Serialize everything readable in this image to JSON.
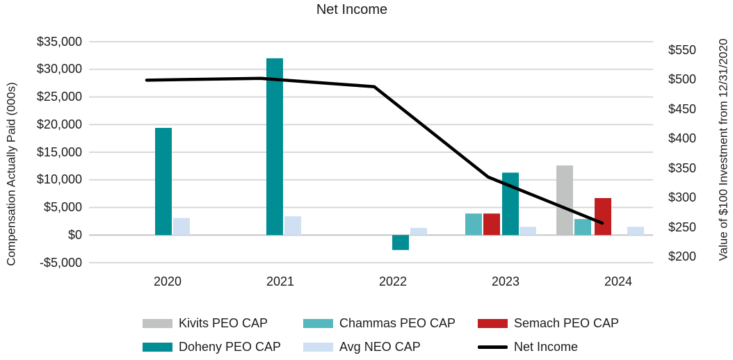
{
  "chart_data": {
    "type": "bar",
    "subtype": "grouped-bars-with-line-overlay",
    "title": "Net Income",
    "categories": [
      "2020",
      "2021",
      "2022",
      "2023",
      "2024"
    ],
    "bar_series": [
      {
        "name": "Kivits PEO CAP",
        "color": "#c1c2c2",
        "values": [
          null,
          null,
          null,
          null,
          12600
        ]
      },
      {
        "name": "Chammas PEO CAP",
        "color": "#54b8be",
        "values": [
          null,
          null,
          null,
          3900,
          2900
        ]
      },
      {
        "name": "Semach PEO CAP",
        "color": "#c21e20",
        "values": [
          null,
          null,
          null,
          3900,
          6700
        ]
      },
      {
        "name": "Doheny PEO CAP",
        "color": "#008d93",
        "values": [
          19400,
          32000,
          -2700,
          11300,
          null
        ]
      },
      {
        "name": "Avg NEO CAP",
        "color": "#cfe0f2",
        "values": [
          3100,
          3400,
          1300,
          1500,
          1500
        ]
      }
    ],
    "line_series": {
      "name": "Net Income",
      "color": "#000000",
      "axis": "right",
      "values": [
        499,
        502,
        488,
        335,
        257
      ]
    },
    "left_axis": {
      "title": "Compensation Actually Paid (000s)",
      "ticks": [
        "$35,000",
        "$30,000",
        "$25,000",
        "$20,000",
        "$15,000",
        "$10,000",
        "$5,000",
        "$0",
        "-$5,000"
      ],
      "tick_values": [
        35000,
        30000,
        25000,
        20000,
        15000,
        10000,
        5000,
        0,
        -5000
      ],
      "range": [
        -5000,
        35000
      ]
    },
    "right_axis": {
      "title": "Value of $100 Investment from 12/31/2020",
      "ticks": [
        "$550",
        "$500",
        "$450",
        "$400",
        "$350",
        "$300",
        "$250",
        "$200"
      ],
      "tick_values": [
        550,
        500,
        450,
        400,
        350,
        300,
        250,
        200
      ],
      "max": 550,
      "step": 50,
      "range": [
        200,
        550
      ]
    },
    "gridlines": true,
    "legend_position": "bottom",
    "grid_color": "#d9d9d9",
    "zero_line_color": "#c6c6c6"
  }
}
